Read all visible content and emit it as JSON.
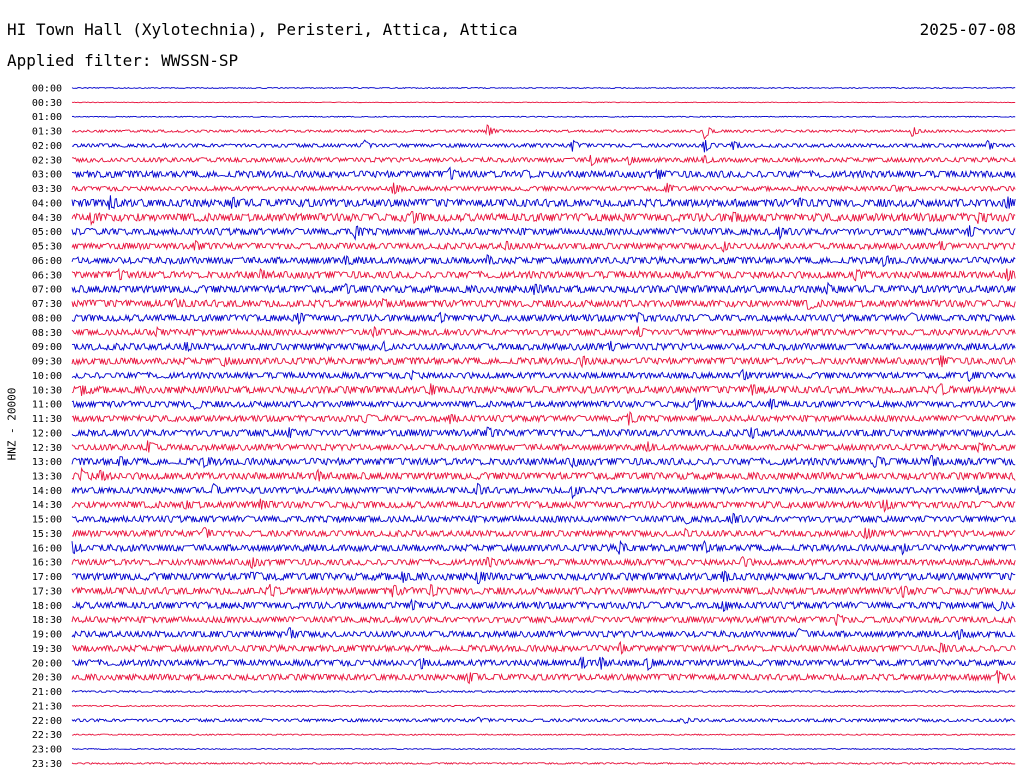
{
  "header": {
    "station": "HI Town Hall (Xylotechnia), Peristeri, Attica, Attica",
    "date": "2025-07-08",
    "filter": "Applied filter: WWSSN-SP"
  },
  "chart_data": {
    "type": "line",
    "title": "HI Town Hall (Xylotechnia), Peristeri, Attica, Attica",
    "ylabel": "HNZ - 20000",
    "row_labels": [
      "00:00",
      "00:30",
      "01:00",
      "01:30",
      "02:00",
      "02:30",
      "03:00",
      "03:30",
      "04:00",
      "04:30",
      "05:00",
      "05:30",
      "06:00",
      "06:30",
      "07:00",
      "07:30",
      "08:00",
      "08:30",
      "09:00",
      "09:30",
      "10:00",
      "10:30",
      "11:00",
      "11:30",
      "12:00",
      "12:30",
      "13:00",
      "13:30",
      "14:00",
      "14:30",
      "15:00",
      "15:30",
      "16:00",
      "16:30",
      "17:00",
      "17:30",
      "18:00",
      "18:30",
      "19:00",
      "19:30",
      "20:00",
      "20:30",
      "21:00",
      "21:30",
      "22:00",
      "22:30",
      "23:00",
      "23:30"
    ],
    "row_colors": [
      "#0000cc",
      "#e8123c"
    ],
    "noise_level": [
      0.3,
      0.2,
      0.3,
      0.8,
      1.2,
      1.5,
      2.2,
      1.5,
      2.5,
      2.6,
      2.2,
      2.0,
      2.2,
      2.3,
      2.4,
      2.3,
      2.2,
      2.0,
      2.2,
      2.2,
      2.0,
      2.3,
      2.0,
      2.0,
      2.2,
      2.0,
      2.3,
      2.3,
      2.0,
      2.2,
      2.1,
      2.0,
      2.2,
      2.0,
      2.4,
      2.3,
      2.2,
      2.0,
      2.0,
      2.1,
      2.0,
      2.0,
      0.6,
      0.4,
      1.0,
      0.4,
      0.3,
      0.5
    ],
    "events": [
      [],
      [],
      [],
      [
        [
          0.44,
          6
        ],
        [
          0.67,
          7
        ],
        [
          0.89,
          5
        ]
      ],
      [
        [
          0.31,
          4
        ],
        [
          0.53,
          5
        ],
        [
          0.67,
          6
        ],
        [
          0.7,
          4
        ],
        [
          0.97,
          4
        ]
      ],
      [
        [
          0.55,
          5
        ],
        [
          0.59,
          4
        ],
        [
          0.67,
          3
        ]
      ],
      [
        [
          0.4,
          4
        ],
        [
          0.48,
          3
        ],
        [
          0.62,
          3
        ]
      ],
      [
        [
          0.34,
          5
        ],
        [
          0.63,
          4
        ],
        [
          0.87,
          3
        ]
      ],
      [
        [
          0.04,
          5
        ],
        [
          0.17,
          4
        ],
        [
          0.77,
          3
        ],
        [
          0.99,
          4
        ]
      ],
      [
        [
          0.02,
          4
        ],
        [
          0.36,
          4
        ],
        [
          0.7,
          4
        ],
        [
          0.96,
          4
        ]
      ],
      [
        [
          0.3,
          5
        ],
        [
          0.75,
          4
        ],
        [
          0.95,
          4
        ]
      ],
      [
        [
          0.13,
          3
        ],
        [
          0.46,
          3
        ],
        [
          0.69,
          4
        ],
        [
          0.92,
          3
        ]
      ],
      [
        [
          0.29,
          3
        ],
        [
          0.44,
          3
        ],
        [
          0.86,
          4
        ]
      ],
      [
        [
          0.05,
          3
        ],
        [
          0.2,
          3
        ],
        [
          0.83,
          4
        ],
        [
          0.99,
          4
        ]
      ],
      [
        [
          0.29,
          3
        ],
        [
          0.49,
          3
        ],
        [
          0.8,
          4
        ]
      ],
      [
        [
          0.11,
          3
        ],
        [
          0.33,
          3
        ],
        [
          0.78,
          4
        ]
      ],
      [
        [
          0.24,
          4
        ],
        [
          0.39,
          3
        ],
        [
          0.6,
          4
        ],
        [
          0.89,
          3
        ]
      ],
      [
        [
          0.09,
          3
        ],
        [
          0.32,
          3
        ],
        [
          0.6,
          3
        ]
      ],
      [
        [
          0.12,
          3
        ],
        [
          0.33,
          3
        ],
        [
          0.57,
          3
        ]
      ],
      [
        [
          0.16,
          3
        ],
        [
          0.54,
          3
        ],
        [
          0.92,
          4
        ]
      ],
      [
        [
          0.36,
          3
        ],
        [
          0.71,
          4
        ],
        [
          0.95,
          4
        ]
      ],
      [
        [
          0.01,
          4
        ],
        [
          0.38,
          4
        ],
        [
          0.72,
          5
        ],
        [
          0.92,
          4
        ]
      ],
      [
        [
          0.13,
          4
        ],
        [
          0.66,
          4
        ],
        [
          0.74,
          4
        ]
      ],
      [
        [
          0.31,
          3
        ],
        [
          0.4,
          4
        ],
        [
          0.59,
          5
        ]
      ],
      [
        [
          0.23,
          3
        ],
        [
          0.44,
          3
        ],
        [
          0.72,
          4
        ]
      ],
      [
        [
          0.08,
          5
        ],
        [
          0.61,
          3
        ],
        [
          0.96,
          3
        ]
      ],
      [
        [
          0.05,
          4
        ],
        [
          0.14,
          3
        ],
        [
          0.53,
          3
        ],
        [
          0.85,
          5
        ],
        [
          0.91,
          4
        ]
      ],
      [
        [
          0.01,
          5
        ],
        [
          0.03,
          4
        ],
        [
          0.26,
          4
        ],
        [
          1.0,
          5
        ]
      ],
      [
        [
          0.15,
          4
        ],
        [
          0.43,
          5
        ],
        [
          0.53,
          5
        ],
        [
          0.96,
          3
        ]
      ],
      [
        [
          0.12,
          3
        ],
        [
          0.2,
          4
        ],
        [
          0.86,
          4
        ]
      ],
      [
        [
          0.65,
          3
        ],
        [
          0.7,
          5
        ]
      ],
      [
        [
          0.14,
          4
        ],
        [
          0.65,
          3
        ],
        [
          0.84,
          5
        ]
      ],
      [
        [
          0.0,
          5
        ],
        [
          0.58,
          5
        ],
        [
          0.67,
          4
        ],
        [
          0.88,
          4
        ]
      ],
      [
        [
          0.19,
          4
        ],
        [
          0.44,
          4
        ],
        [
          0.71,
          4
        ]
      ],
      [
        [
          0.19,
          3
        ],
        [
          0.35,
          4
        ],
        [
          0.43,
          5
        ],
        [
          0.69,
          4
        ]
      ],
      [
        [
          0.21,
          4
        ],
        [
          0.34,
          4
        ],
        [
          0.38,
          4
        ],
        [
          0.88,
          4
        ]
      ],
      [
        [
          0.36,
          4
        ],
        [
          0.69,
          5
        ],
        [
          0.98,
          4
        ]
      ],
      [
        [
          0.81,
          4
        ]
      ],
      [
        [
          0.23,
          5
        ],
        [
          0.77,
          4
        ],
        [
          0.94,
          4
        ]
      ],
      [
        [
          0.58,
          4
        ],
        [
          0.92,
          4
        ]
      ],
      [
        [
          0.37,
          4
        ],
        [
          0.54,
          5
        ],
        [
          0.56,
          5
        ],
        [
          0.61,
          5
        ]
      ],
      [
        [
          0.42,
          5
        ],
        [
          0.98,
          5
        ]
      ],
      [],
      [],
      [
        [
          0.43,
          2
        ],
        [
          0.65,
          2
        ]
      ],
      [],
      [],
      []
    ]
  }
}
